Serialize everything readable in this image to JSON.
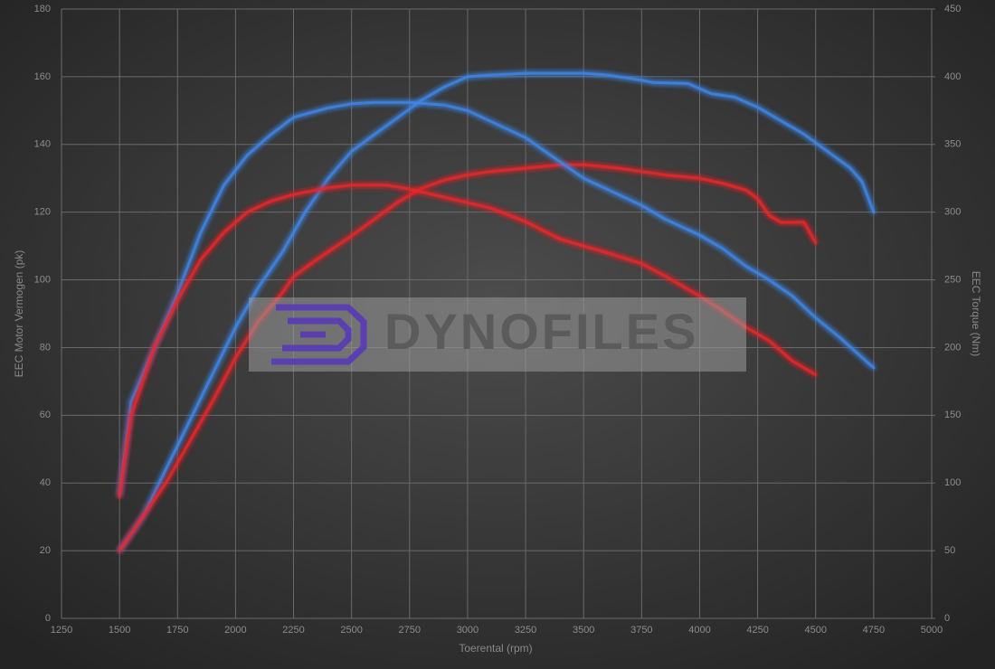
{
  "chart_data": {
    "type": "line",
    "y_label": "EEC Motor Vermogen (pk)",
    "y2_label": "EEC Torque (Nm)",
    "x_label": "Toerental (rpm)",
    "watermark": "DYNOFILES",
    "xlim": [
      1250,
      5000
    ],
    "xticks": [
      1250,
      1500,
      1750,
      2000,
      2250,
      2500,
      2750,
      3000,
      3250,
      3500,
      3750,
      4000,
      4250,
      4500,
      4750,
      5000
    ],
    "ylim": [
      0,
      180
    ],
    "yticks": [
      0,
      20,
      40,
      60,
      80,
      100,
      120,
      140,
      160,
      180
    ],
    "y2lim": [
      0,
      450
    ],
    "y2ticks": [
      0,
      50,
      100,
      150,
      200,
      250,
      300,
      350,
      400,
      450
    ],
    "grid": true,
    "series": [
      {
        "color": "#3f86e8",
        "axis": "y",
        "x": [
          1500,
          1600,
          1700,
          1800,
          1900,
          2000,
          2100,
          2200,
          2300,
          2400,
          2500,
          2600,
          2700,
          2800,
          2900,
          3000,
          3100,
          3250,
          3500,
          3600,
          3750,
          3800,
          3950,
          4050,
          4150,
          4250,
          4350,
          4450,
          4550,
          4650,
          4700,
          4750
        ],
        "values": [
          20,
          30,
          44,
          58,
          72,
          86,
          98,
          108,
          120,
          130,
          138,
          143,
          148,
          153,
          157,
          160,
          160.5,
          161,
          161,
          160.5,
          159,
          158.3,
          158,
          155,
          154,
          151,
          147,
          143,
          138,
          133,
          129,
          120
        ]
      },
      {
        "color": "#e8262a",
        "axis": "y",
        "x": [
          1500,
          1550,
          1600,
          1700,
          1800,
          1900,
          2000,
          2100,
          2200,
          2250,
          2350,
          2500,
          2600,
          2700,
          2800,
          2900,
          3000,
          3100,
          3250,
          3400,
          3500,
          3650,
          3750,
          3850,
          4000,
          4100,
          4200,
          4250,
          4300,
          4350,
          4450,
          4500
        ],
        "values": [
          20,
          25,
          30,
          40,
          52,
          64,
          77,
          88,
          96,
          101,
          106,
          113,
          118,
          123,
          127,
          129.5,
          131,
          132,
          133,
          134,
          134,
          133,
          132,
          131,
          130,
          128.5,
          126.5,
          124,
          119,
          117,
          117,
          111
        ]
      },
      {
        "color": "#3f86e8",
        "axis": "y2",
        "x": [
          1500,
          1550,
          1650,
          1750,
          1850,
          1950,
          2050,
          2150,
          2250,
          2400,
          2500,
          2600,
          2750,
          2900,
          3000,
          3100,
          3250,
          3350,
          3500,
          3600,
          3750,
          3850,
          4000,
          4100,
          4200,
          4300,
          4400,
          4500,
          4600,
          4750
        ],
        "values": [
          91,
          160,
          200,
          240,
          285,
          320,
          342,
          357,
          370,
          377,
          380,
          381,
          381,
          379,
          375,
          367,
          355,
          343,
          325,
          317,
          305,
          295,
          283,
          273,
          260,
          250,
          238,
          222,
          208,
          185
        ]
      },
      {
        "color": "#e8262a",
        "axis": "y2",
        "x": [
          1500,
          1550,
          1650,
          1750,
          1850,
          1950,
          2050,
          2150,
          2250,
          2400,
          2500,
          2650,
          2750,
          2900,
          3100,
          3250,
          3400,
          3500,
          3600,
          3750,
          3850,
          4000,
          4100,
          4200,
          4300,
          4400,
          4500
        ],
        "values": [
          90,
          150,
          200,
          235,
          265,
          285,
          300,
          308,
          313,
          318,
          320,
          320,
          317,
          311,
          303,
          293,
          280,
          275,
          270,
          262,
          253,
          238,
          227,
          215,
          205,
          190,
          180
        ]
      }
    ]
  }
}
